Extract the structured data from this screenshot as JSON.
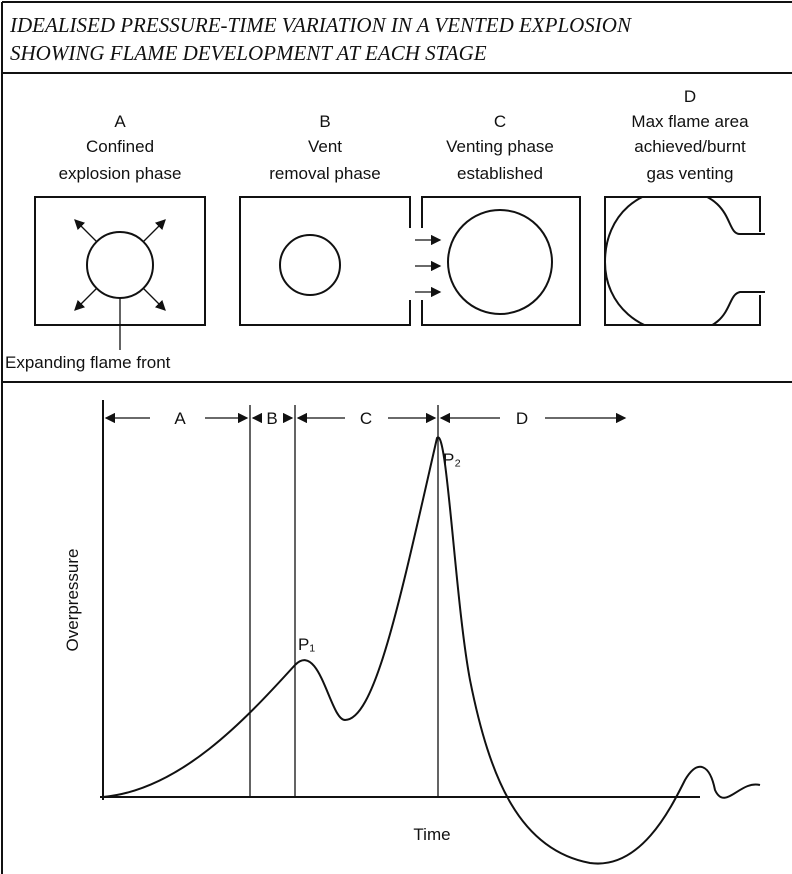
{
  "title": [
    "IDEALISED PRESSURE-TIME VARIATION IN A VENTED EXPLOSION",
    "SHOWING FLAME DEVELOPMENT AT EACH STAGE"
  ],
  "stages": [
    {
      "letter": "A",
      "caption": [
        "Confined",
        "explosion phase"
      ]
    },
    {
      "letter": "B",
      "caption": [
        "Vent",
        "removal phase"
      ]
    },
    {
      "letter": "C",
      "caption": [
        "Venting phase",
        "established"
      ]
    },
    {
      "letter": "D",
      "caption": [
        "Max flame area",
        "achieved/burnt",
        "gas venting"
      ]
    }
  ],
  "annotation": "Expanding flame front",
  "graph": {
    "phases": [
      "A",
      "B",
      "C",
      "D"
    ],
    "peaks": [
      "P₁",
      "P₂"
    ],
    "y_label": "Overpressure",
    "x_label": "Time"
  }
}
